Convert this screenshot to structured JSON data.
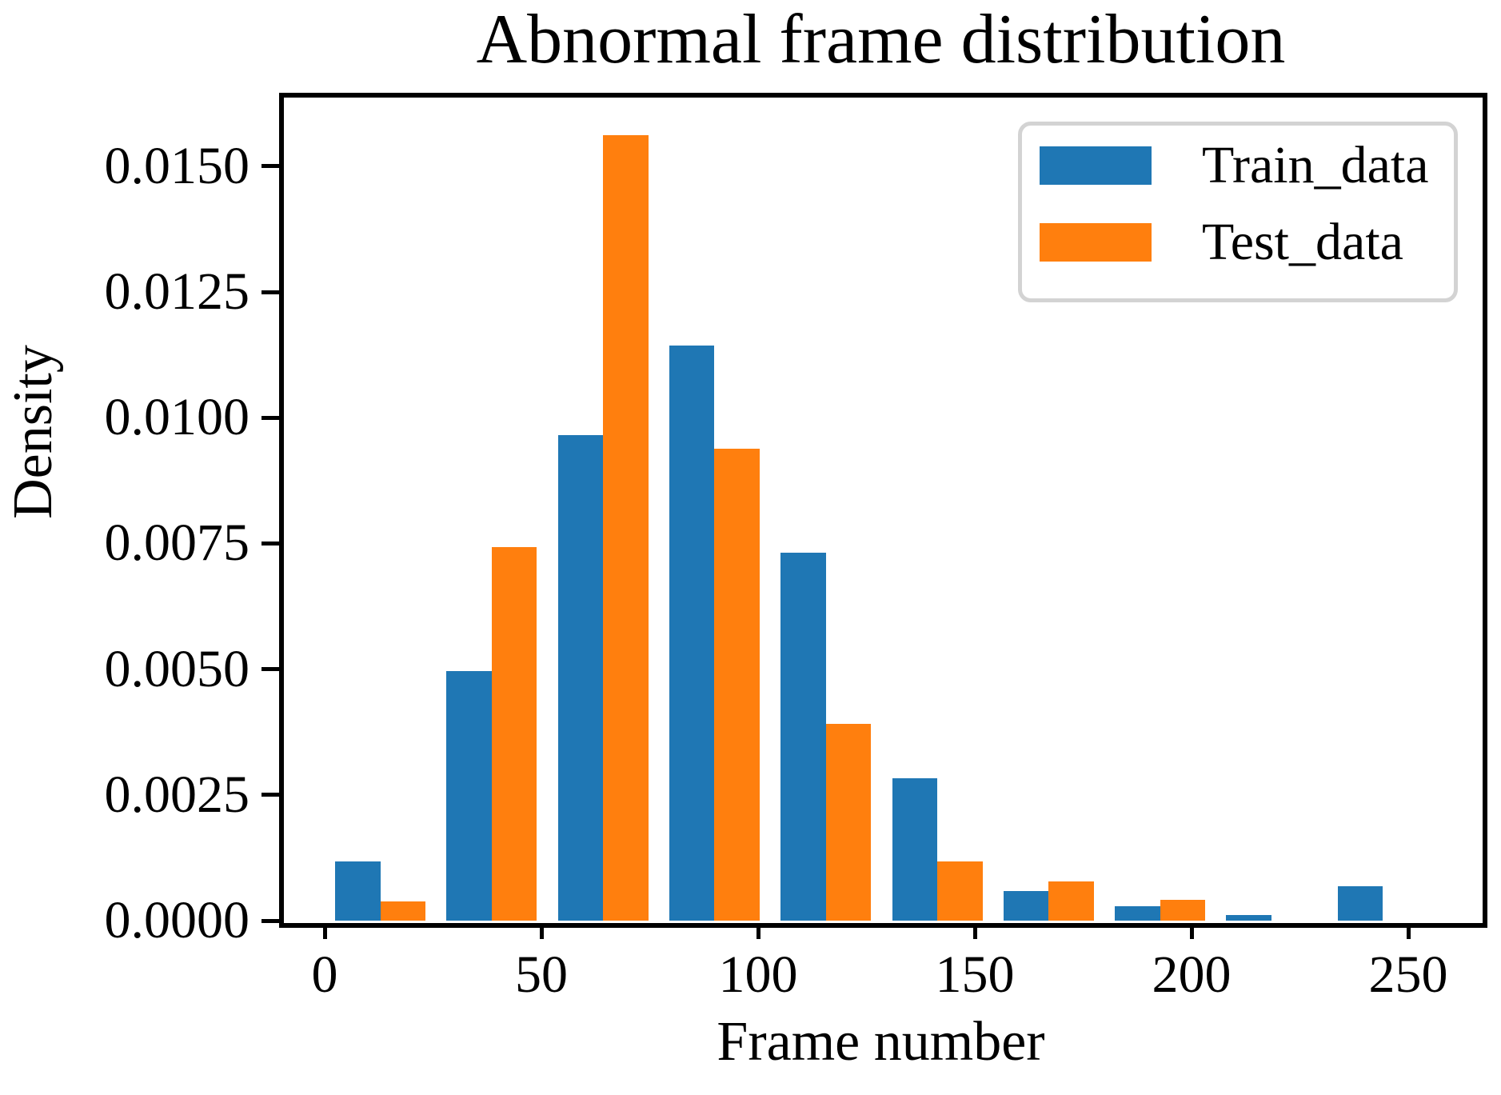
{
  "title": "Abnormal frame distribution",
  "axes": {
    "xlabel": "Frame number",
    "ylabel": "Density",
    "x_ticks": [
      {
        "label": "0",
        "value": 0
      },
      {
        "label": "50",
        "value": 50
      },
      {
        "label": "100",
        "value": 100
      },
      {
        "label": "150",
        "value": 150
      },
      {
        "label": "200",
        "value": 200
      },
      {
        "label": "250",
        "value": 250
      }
    ],
    "y_ticks": [
      {
        "label": "0.0000",
        "value": 0.0
      },
      {
        "label": "0.0025",
        "value": 0.0025
      },
      {
        "label": "0.0050",
        "value": 0.005
      },
      {
        "label": "0.0075",
        "value": 0.0075
      },
      {
        "label": "0.0100",
        "value": 0.01
      },
      {
        "label": "0.0125",
        "value": 0.0125
      },
      {
        "label": "0.0150",
        "value": 0.015
      }
    ]
  },
  "legend": {
    "position": "upper right",
    "items": [
      {
        "label": "Train_data",
        "color": "#1f77b4"
      },
      {
        "label": "Test_data",
        "color": "#ff7f0e"
      }
    ]
  },
  "colors": {
    "train": "#1f77b4",
    "test": "#ff7f0e",
    "spine": "#000000",
    "legend_border": "#d3d3d3",
    "background": "#ffffff"
  },
  "chart_data": {
    "type": "bar",
    "subtype": "grouped-histogram",
    "title": "Abnormal frame distribution",
    "xlabel": "Frame number",
    "ylabel": "Density",
    "xlim": [
      -10,
      266.6
    ],
    "ylim": [
      0,
      0.01641
    ],
    "grid": false,
    "legend_position": "upper right",
    "bin_width": 25.7,
    "bar_width": 10.42,
    "bin_starts": [
      2.4,
      28.1,
      53.8,
      79.5,
      105.2,
      130.9,
      156.6,
      182.3,
      208.0,
      233.7
    ],
    "series": [
      {
        "name": "Train_data",
        "color": "#1f77b4",
        "values": [
          0.00118,
          0.00497,
          0.00966,
          0.01143,
          0.00731,
          0.00283,
          0.00059,
          0.00029,
          0.00011,
          0.00068
        ]
      },
      {
        "name": "Test_data",
        "color": "#ff7f0e",
        "values": [
          0.00038,
          0.00742,
          0.01562,
          0.00938,
          0.00392,
          0.00118,
          0.00078,
          0.00041,
          0.0,
          0.0
        ]
      }
    ]
  }
}
